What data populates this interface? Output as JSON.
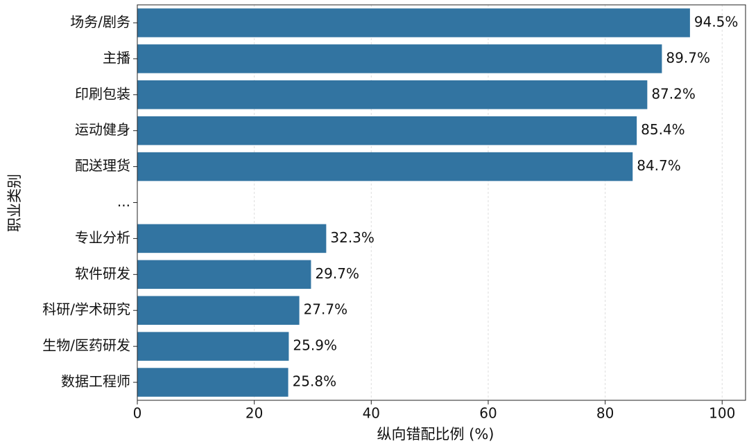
{
  "chart_data": {
    "type": "bar",
    "orientation": "horizontal",
    "xlabel": "纵向错配比例 (%)",
    "ylabel": "职业类别",
    "categories": [
      "场务/剧务",
      "主播",
      "印刷包装",
      "运动健身",
      "配送理货",
      "...",
      "专业分析",
      "软件研发",
      "科研/学术研究",
      "生物/医药研发",
      "数据工程师"
    ],
    "values": [
      94.5,
      89.7,
      87.2,
      85.4,
      84.7,
      null,
      32.3,
      29.7,
      27.7,
      25.9,
      25.8
    ],
    "value_labels": [
      "94.5%",
      "89.7%",
      "87.2%",
      "85.4%",
      "84.7%",
      null,
      "32.3%",
      "29.7%",
      "27.7%",
      "25.9%",
      "25.8%"
    ],
    "color": "#3274a1",
    "xlim": [
      0,
      104
    ],
    "xticks": [
      0,
      20,
      40,
      60,
      80,
      100
    ],
    "grid": true
  }
}
